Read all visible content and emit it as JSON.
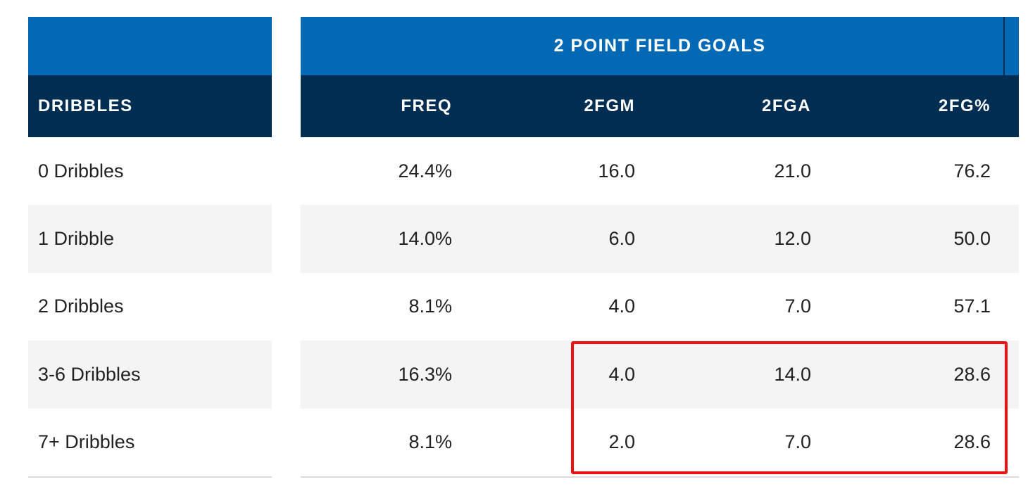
{
  "table": {
    "group_header": "2 POINT FIELD GOALS",
    "row_header": "DRIBBLES",
    "columns": [
      "FREQ",
      "2FGM",
      "2FGA",
      "2FG%"
    ],
    "rows": [
      {
        "label": "0 Dribbles",
        "freq": "24.4%",
        "fgm": "16.0",
        "fga": "21.0",
        "pct": "76.2"
      },
      {
        "label": "1 Dribble",
        "freq": "14.0%",
        "fgm": "6.0",
        "fga": "12.0",
        "pct": "50.0"
      },
      {
        "label": "2 Dribbles",
        "freq": "8.1%",
        "fgm": "4.0",
        "fga": "7.0",
        "pct": "57.1"
      },
      {
        "label": "3-6 Dribbles",
        "freq": "16.3%",
        "fgm": "4.0",
        "fga": "14.0",
        "pct": "28.6"
      },
      {
        "label": "7+ Dribbles",
        "freq": "8.1%",
        "fgm": "2.0",
        "fga": "7.0",
        "pct": "28.6"
      }
    ],
    "colors": {
      "group_header_bg": "#0369b5",
      "column_header_bg": "#002d52",
      "alt_row_bg": "#f4f4f4",
      "highlight": "#ee1111"
    }
  },
  "chart_data": {
    "type": "table",
    "title": "2 POINT FIELD GOALS",
    "columns": [
      "DRIBBLES",
      "FREQ",
      "2FGM",
      "2FGA",
      "2FG%"
    ],
    "rows": [
      [
        "0 Dribbles",
        "24.4%",
        16.0,
        21.0,
        76.2
      ],
      [
        "1 Dribble",
        "14.0%",
        6.0,
        12.0,
        50.0
      ],
      [
        "2 Dribbles",
        "8.1%",
        4.0,
        7.0,
        57.1
      ],
      [
        "3-6 Dribbles",
        "16.3%",
        4.0,
        14.0,
        28.6
      ],
      [
        "7+ Dribbles",
        "8.1%",
        2.0,
        7.0,
        28.6
      ]
    ]
  }
}
